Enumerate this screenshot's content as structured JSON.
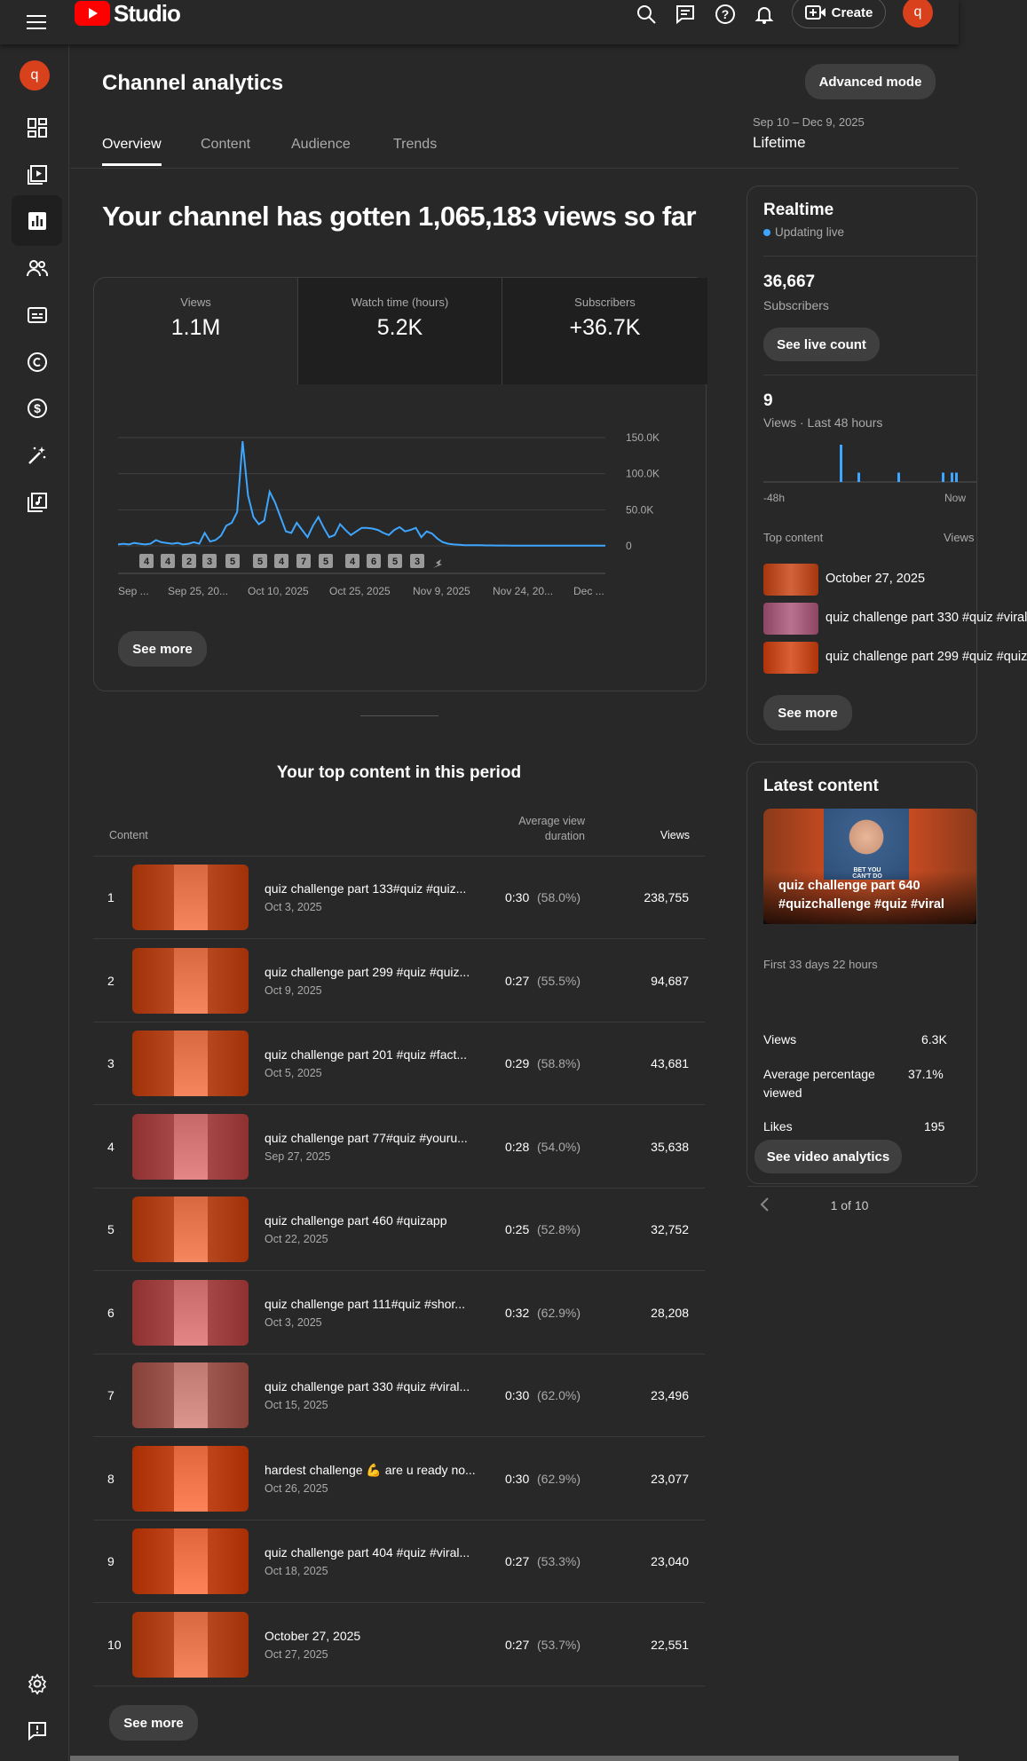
{
  "app": {
    "name": "Studio",
    "avatar_letter": "q",
    "create_label": "Create"
  },
  "page": {
    "title": "Channel analytics",
    "advanced_mode_label": "Advanced mode",
    "date_range": "Sep 10 – Dec 9, 2025",
    "date_period": "Lifetime",
    "tabs": [
      "Overview",
      "Content",
      "Audience",
      "Trends"
    ],
    "headline": "Your channel has gotten 1,065,183 views so far"
  },
  "metrics": [
    {
      "label": "Views",
      "value": "1.1M"
    },
    {
      "label": "Watch time (hours)",
      "value": "5.2K"
    },
    {
      "label": "Subscribers",
      "value": "+36.7K"
    }
  ],
  "chart_data": {
    "type": "line",
    "x_tick_labels": [
      "Sep ...",
      "Sep 25, 20...",
      "Oct 10, 2025",
      "Oct 25, 2025",
      "Nov 9, 2025",
      "Nov 24, 20...",
      "Dec ..."
    ],
    "y_tick_labels": [
      "150.0K",
      "100.0K",
      "50.0K",
      "0"
    ],
    "ylim": [
      0,
      150000
    ],
    "values": [
      2000,
      3000,
      2000,
      4000,
      3000,
      2000,
      3000,
      8000,
      5000,
      4000,
      3000,
      4000,
      2000,
      3000,
      5000,
      3000,
      18000,
      6000,
      8000,
      14000,
      28000,
      32000,
      47000,
      145000,
      70000,
      40000,
      30000,
      35000,
      75000,
      60000,
      40000,
      20000,
      18000,
      32000,
      22000,
      12000,
      28000,
      40000,
      25000,
      12000,
      15000,
      30000,
      22000,
      15000,
      20000,
      25000,
      25000,
      24000,
      22000,
      18000,
      15000,
      22000,
      26000,
      20000,
      22000,
      25000,
      12000,
      20000,
      17000,
      10000,
      5000,
      3000,
      2000,
      1500,
      1000,
      1000,
      800,
      800,
      600,
      600,
      500,
      500,
      500,
      400,
      400,
      400,
      400,
      300,
      300,
      300,
      300,
      300,
      300,
      300,
      300,
      300,
      300,
      300,
      300,
      300,
      300
    ],
    "grid": true,
    "markers": [
      "4",
      "4",
      "2",
      "3",
      "5",
      "5",
      "4",
      "7",
      "5",
      "4",
      "6",
      "5",
      "3"
    ]
  },
  "see_more_label": "See more",
  "top_content": {
    "title": "Your top content in this period",
    "col_content": "Content",
    "col_avg": "Average view duration",
    "col_views": "Views",
    "rows": [
      {
        "rank": "1",
        "title": "quiz challenge part 133#quiz #quiz...",
        "date": "Oct 3, 2025",
        "duration": "0:30",
        "percent": "(58.0%)",
        "views": "238,755",
        "color": "#b94a22"
      },
      {
        "rank": "2",
        "title": "quiz challenge part 299 #quiz #quiz...",
        "date": "Oct 9, 2025",
        "duration": "0:27",
        "percent": "(55.5%)",
        "views": "94,687",
        "color": "#b94a22"
      },
      {
        "rank": "3",
        "title": "quiz challenge part 201 #quiz #fact...",
        "date": "Oct 5, 2025",
        "duration": "0:29",
        "percent": "(58.8%)",
        "views": "43,681",
        "color": "#b94a22"
      },
      {
        "rank": "4",
        "title": "quiz challenge part 77#quiz #youru...",
        "date": "Sep 27, 2025",
        "duration": "0:28",
        "percent": "(54.0%)",
        "views": "35,638",
        "color": "#a84a4a"
      },
      {
        "rank": "5",
        "title": "quiz challenge part 460 #quizapp",
        "date": "Oct 22, 2025",
        "duration": "0:25",
        "percent": "(52.8%)",
        "views": "32,752",
        "color": "#b94a22"
      },
      {
        "rank": "6",
        "title": "quiz challenge part 111#quiz #shor...",
        "date": "Oct 3, 2025",
        "duration": "0:32",
        "percent": "(62.9%)",
        "views": "28,208",
        "color": "#a84a4a"
      },
      {
        "rank": "7",
        "title": "quiz challenge part 330 #quiz #viral...",
        "date": "Oct 15, 2025",
        "duration": "0:30",
        "percent": "(62.0%)",
        "views": "23,496",
        "color": "#a05a52"
      },
      {
        "rank": "8",
        "title": "hardest challenge 💪 are u ready no...",
        "date": "Oct 26, 2025",
        "duration": "0:30",
        "percent": "(62.9%)",
        "views": "23,077",
        "color": "#c2471d"
      },
      {
        "rank": "9",
        "title": "quiz challenge part 404 #quiz #viral...",
        "date": "Oct 18, 2025",
        "duration": "0:27",
        "percent": "(53.3%)",
        "views": "23,040",
        "color": "#c2471d"
      },
      {
        "rank": "10",
        "title": "October 27, 2025",
        "date": "Oct 27, 2025",
        "duration": "0:27",
        "percent": "(53.7%)",
        "views": "22,551",
        "color": "#b94a22"
      }
    ]
  },
  "realtime": {
    "title": "Realtime",
    "status": "Updating live",
    "subscribers_value": "36,667",
    "subscribers_label": "Subscribers",
    "live_count_label": "See live count",
    "views_value": "9",
    "views_label": "Views · Last 48 hours",
    "axis_left": "-48h",
    "axis_right": "Now",
    "top_content_label": "Top content",
    "top_content_views_label": "Views",
    "chart_data": {
      "type": "bar",
      "values": [
        0,
        0,
        0,
        0,
        0,
        0,
        0,
        0,
        0,
        0,
        0,
        0,
        0,
        0,
        0,
        0,
        0,
        4,
        0,
        0,
        0,
        1,
        0,
        0,
        0,
        0,
        0,
        0,
        0,
        0,
        1,
        0,
        0,
        0,
        0,
        0,
        0,
        0,
        0,
        0,
        1,
        0,
        1,
        1,
        0,
        0,
        0,
        0
      ]
    },
    "items": [
      {
        "title": "October 27, 2025",
        "color": "#b94a22"
      },
      {
        "title": "quiz challenge part 330 #quiz #viral",
        "color": "#a05a78"
      },
      {
        "title": "quiz challenge part 299 #quiz #quiz",
        "color": "#c2471d"
      }
    ]
  },
  "latest": {
    "title": "Latest content",
    "video_title": "quiz challenge part 640 #quizchallenge #quiz #viral",
    "thumb_caption": "BET YOU CAN'T DO",
    "period": "First 33 days 22 hours",
    "stats": [
      {
        "label": "Views",
        "value": "6.3K"
      },
      {
        "label": "Average percentage viewed",
        "value": "37.1%"
      },
      {
        "label": "Likes",
        "value": "195"
      }
    ],
    "video_analytics_label": "See video analytics",
    "pager": "1 of 10"
  }
}
